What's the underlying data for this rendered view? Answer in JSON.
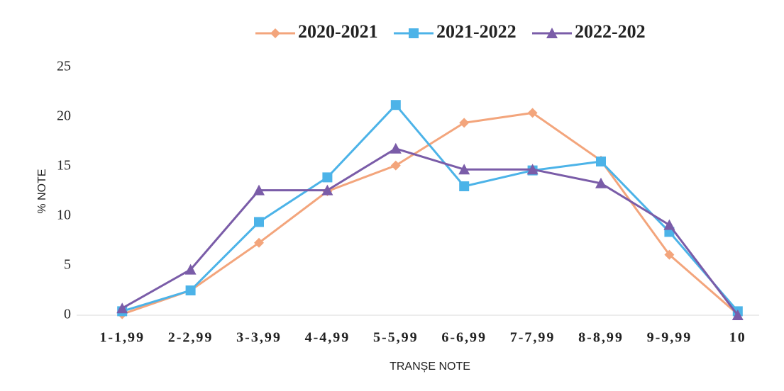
{
  "chart_data": {
    "type": "line",
    "x_label": "TRANȘE NOTE",
    "y_label": "% NOTE",
    "categories": [
      "1-1,99",
      "2-2,99",
      "3-3,99",
      "4-4,99",
      "5-5,99",
      "6-6,99",
      "7-7,99",
      "8-8,99",
      "9-9,99",
      "10"
    ],
    "series": [
      {
        "name": "2020-2021",
        "color": "#f3a57c",
        "marker": "diamond",
        "values": [
          0.1,
          2.5,
          7.3,
          12.5,
          15.1,
          19.4,
          20.4,
          15.6,
          6.1,
          0.1
        ]
      },
      {
        "name": "2021-2022",
        "color": "#4cb3e8",
        "marker": "square",
        "values": [
          0.4,
          2.5,
          9.4,
          13.9,
          21.2,
          13.0,
          14.6,
          15.5,
          8.4,
          0.4
        ]
      },
      {
        "name": "2022-202",
        "color": "#7a5ca8",
        "marker": "triangle",
        "values": [
          0.7,
          4.6,
          12.6,
          12.6,
          16.8,
          14.7,
          14.7,
          13.3,
          9.1,
          0
        ]
      }
    ],
    "ylim": [
      0,
      25
    ],
    "yticks": [
      0,
      5,
      10,
      15,
      20,
      25
    ],
    "legend": "top"
  }
}
